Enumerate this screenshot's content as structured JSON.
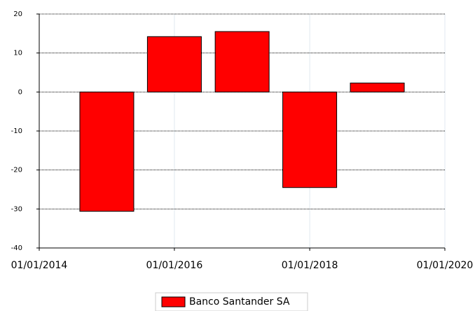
{
  "chart_data": {
    "type": "bar",
    "x": [
      "01/01/2015",
      "01/01/2016",
      "01/01/2017",
      "01/01/2018",
      "01/01/2019"
    ],
    "series": [
      {
        "name": "Banco Santander SA",
        "color": "#ff0000",
        "values": [
          -30.6,
          14.2,
          15.5,
          -24.5,
          2.3
        ]
      }
    ],
    "xlim": [
      "01/01/2014",
      "01/01/2020"
    ],
    "xticks": [
      "01/01/2014",
      "01/01/2016",
      "01/01/2018",
      "01/01/2020"
    ],
    "ylim": [
      -40,
      20
    ],
    "yticks": [
      20,
      10,
      0,
      -10,
      -20,
      -30,
      -40
    ],
    "grid": true,
    "legend": "bottom"
  }
}
